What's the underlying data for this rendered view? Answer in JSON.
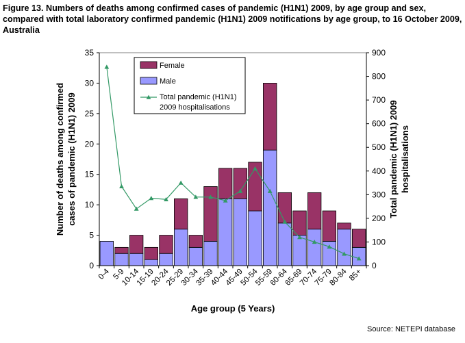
{
  "figure": {
    "caption": "Figure 13. Numbers of deaths among confirmed cases of pandemic (H1N1) 2009, by age group and sex, compared with total laboratory confirmed pandemic (H1N1) 2009 notifications by age group, to 16 October 2009, Australia",
    "source": "Source: NETEPI database"
  },
  "chart_data": {
    "type": "bar",
    "stacked": true,
    "secondary_axis_line": true,
    "title": "Figure 13. Numbers of deaths among confirmed cases of pandemic (H1N1) 2009, by age group and sex, compared with total laboratory confirmed pandemic (H1N1) 2009 notifications by age group, to 16 October 2009, Australia",
    "categories": [
      "0-4",
      "5-9",
      "10-14",
      "15-19",
      "20-24",
      "25-29",
      "30-34",
      "35-39",
      "40-44",
      "45-49",
      "50-54",
      "55-59",
      "60-64",
      "65-69",
      "70-74",
      "75-79",
      "80-84",
      "85+"
    ],
    "series": [
      {
        "name": "Male",
        "axis": "left",
        "color": "#9999ff",
        "values": [
          4,
          2,
          2,
          1,
          2,
          6,
          3,
          4,
          11,
          11,
          9,
          19,
          7,
          5,
          6,
          4,
          6,
          3
        ]
      },
      {
        "name": "Female",
        "axis": "left",
        "color": "#993366",
        "values": [
          0,
          1,
          3,
          2,
          3,
          5,
          2,
          9,
          5,
          5,
          8,
          11,
          5,
          4,
          6,
          5,
          1,
          3
        ]
      },
      {
        "name": "Total pandemic (H1N1) 2009 hospitalisations",
        "axis": "right",
        "type": "line",
        "color": "#339966",
        "values": [
          840,
          335,
          240,
          285,
          280,
          350,
          290,
          290,
          275,
          315,
          410,
          315,
          185,
          120,
          100,
          80,
          50,
          30
        ]
      }
    ],
    "legend": [
      "Female",
      "Male",
      "Total pandemic (H1N1)",
      "2009 hospitalisations"
    ],
    "xlabel": "Age group (5 Years)",
    "ylabel": [
      "Number of deaths among confirmed",
      "cases of pandemic (H1N1) 2009"
    ],
    "y2label": [
      "Total pandemic (H1N1) 2009",
      "hospitalisations"
    ],
    "ylim": [
      0,
      35
    ],
    "yticks": [
      0,
      5,
      10,
      15,
      20,
      25,
      30,
      35
    ],
    "y2lim": [
      0,
      900
    ],
    "y2ticks": [
      0,
      100,
      200,
      300,
      400,
      500,
      600,
      700,
      800,
      900
    ],
    "legend_position": "top-left inside plot",
    "grid": false
  }
}
